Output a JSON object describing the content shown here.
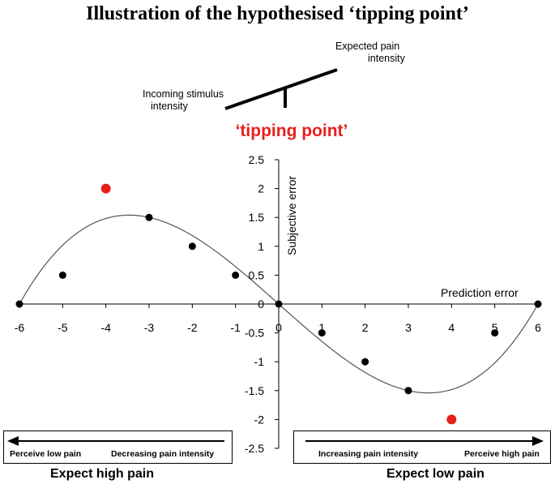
{
  "title": "Illustration of the hypothesised ‘tipping point’",
  "seesaw": {
    "left_label_line1": "Incoming stimulus",
    "left_label_line2": "intensity",
    "right_label_line1": "Expected pain",
    "right_label_line2": "intensity"
  },
  "tipping_point_label": "‘tipping point’",
  "chart_data": {
    "type": "scatter",
    "xlabel": "Prediction error",
    "ylabel": "Subjective error",
    "xlim": [
      -6,
      6
    ],
    "ylim": [
      -2.5,
      2.5
    ],
    "x_ticks": [
      -6,
      -5,
      -4,
      -3,
      -2,
      -1,
      0,
      1,
      2,
      3,
      4,
      5,
      6
    ],
    "y_ticks": [
      2.5,
      2,
      1.5,
      1,
      0.5,
      0,
      -0.5,
      -1,
      -1.5,
      -2,
      -2.5
    ],
    "series": [
      {
        "color": "#000000",
        "points": [
          {
            "x": -6,
            "y": 0
          },
          {
            "x": -5,
            "y": 0.5
          },
          {
            "x": -3,
            "y": 1.5
          },
          {
            "x": -2,
            "y": 1
          },
          {
            "x": -1,
            "y": 0.5
          },
          {
            "x": 0,
            "y": 0
          },
          {
            "x": 1,
            "y": -0.5
          },
          {
            "x": 2,
            "y": -1
          },
          {
            "x": 3,
            "y": -1.5
          },
          {
            "x": 5,
            "y": -0.5
          },
          {
            "x": 6,
            "y": 0
          }
        ]
      },
      {
        "color": "#e8201b",
        "points": [
          {
            "x": -4,
            "y": 2
          },
          {
            "x": 4,
            "y": -2
          }
        ]
      }
    ],
    "curve": "cubic through (-6,0), (0,0), (6,0); peak about 1.54 at x = -3.46 and trough about -1.54 at x = 3.46",
    "grid": false
  },
  "left_box": {
    "text_left": "Perceive low pain",
    "text_right": "Decreasing pain intensity",
    "caption": "Expect high pain"
  },
  "right_box": {
    "text_left": "Increasing pain intensity",
    "text_right": "Perceive high pain",
    "caption": "Expect low pain"
  }
}
